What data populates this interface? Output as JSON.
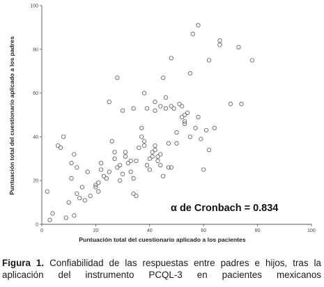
{
  "chart_data": {
    "type": "scatter",
    "title": "",
    "xlabel": "Puntuación total del cuestionario aplicado a los pacientes",
    "ylabel": "Puntuación total del cuestionario aplicado a los padres",
    "xlim": [
      0,
      100
    ],
    "ylim": [
      0,
      100
    ],
    "xticks": [
      "0",
      "20",
      "40",
      "60",
      "80",
      "100"
    ],
    "yticks": [
      "0",
      "20",
      "40",
      "60",
      "80",
      "100"
    ],
    "annotation": "α de Cronbach = 0.834",
    "grid": false,
    "legend": "none",
    "marker_color": "#6d6d6d",
    "points": [
      [
        2,
        15
      ],
      [
        3,
        2
      ],
      [
        4,
        5
      ],
      [
        7,
        35
      ],
      [
        6,
        36
      ],
      [
        8,
        40
      ],
      [
        9,
        3
      ],
      [
        10,
        10
      ],
      [
        11,
        28
      ],
      [
        11,
        21
      ],
      [
        12,
        4
      ],
      [
        12,
        32
      ],
      [
        13,
        26
      ],
      [
        13,
        14
      ],
      [
        14,
        12
      ],
      [
        15,
        17
      ],
      [
        16,
        11
      ],
      [
        17,
        24
      ],
      [
        18,
        13
      ],
      [
        20,
        18
      ],
      [
        20,
        17
      ],
      [
        21,
        15
      ],
      [
        21,
        19
      ],
      [
        22,
        25
      ],
      [
        22,
        28
      ],
      [
        23,
        22
      ],
      [
        24,
        21
      ],
      [
        25,
        24
      ],
      [
        26,
        38
      ],
      [
        27,
        33
      ],
      [
        27,
        30
      ],
      [
        28,
        26
      ],
      [
        29,
        20
      ],
      [
        29,
        27
      ],
      [
        30,
        23
      ],
      [
        31,
        31
      ],
      [
        31,
        33
      ],
      [
        32,
        28
      ],
      [
        33,
        24
      ],
      [
        33,
        29
      ],
      [
        34,
        21
      ],
      [
        34,
        14
      ],
      [
        35,
        13
      ],
      [
        35,
        29
      ],
      [
        36,
        35
      ],
      [
        37,
        44
      ],
      [
        37,
        40
      ],
      [
        38,
        36
      ],
      [
        38,
        38
      ],
      [
        39,
        27
      ],
      [
        40,
        25
      ],
      [
        40,
        30
      ],
      [
        41,
        33
      ],
      [
        41,
        31
      ],
      [
        42,
        34
      ],
      [
        42,
        36
      ],
      [
        43,
        31
      ],
      [
        43,
        29
      ],
      [
        44,
        27
      ],
      [
        44,
        32
      ],
      [
        45,
        22
      ],
      [
        47,
        26
      ],
      [
        47,
        37
      ],
      [
        48,
        54
      ],
      [
        48,
        26
      ],
      [
        49,
        53
      ],
      [
        50,
        42
      ],
      [
        51,
        55
      ],
      [
        52,
        49
      ],
      [
        52,
        54
      ],
      [
        53,
        50
      ],
      [
        53,
        47
      ],
      [
        54,
        51
      ],
      [
        55,
        40
      ],
      [
        57,
        44
      ],
      [
        58,
        49
      ],
      [
        59,
        39
      ],
      [
        60,
        25
      ],
      [
        61,
        43
      ],
      [
        62,
        34
      ],
      [
        64,
        44
      ],
      [
        25,
        56
      ],
      [
        28,
        67
      ],
      [
        30,
        52
      ],
      [
        34,
        53
      ],
      [
        38,
        60
      ],
      [
        39,
        53
      ],
      [
        42,
        52
      ],
      [
        45,
        67
      ],
      [
        46,
        53
      ],
      [
        48,
        76
      ],
      [
        50,
        37
      ],
      [
        53,
        46
      ],
      [
        55,
        69
      ],
      [
        56,
        87
      ],
      [
        58,
        91
      ],
      [
        62,
        75
      ],
      [
        66,
        82
      ],
      [
        66,
        84
      ],
      [
        70,
        55
      ],
      [
        73,
        81
      ],
      [
        74,
        55
      ],
      [
        78,
        75
      ],
      [
        42,
        56
      ],
      [
        44,
        54
      ],
      [
        46,
        58
      ]
    ]
  },
  "caption": {
    "label": "Figura 1.",
    "text": " Confiabilidad de las respuestas entre padres e hijos, tras la aplicación del instrumento PCQL-3 en pacientes mexicanos"
  }
}
